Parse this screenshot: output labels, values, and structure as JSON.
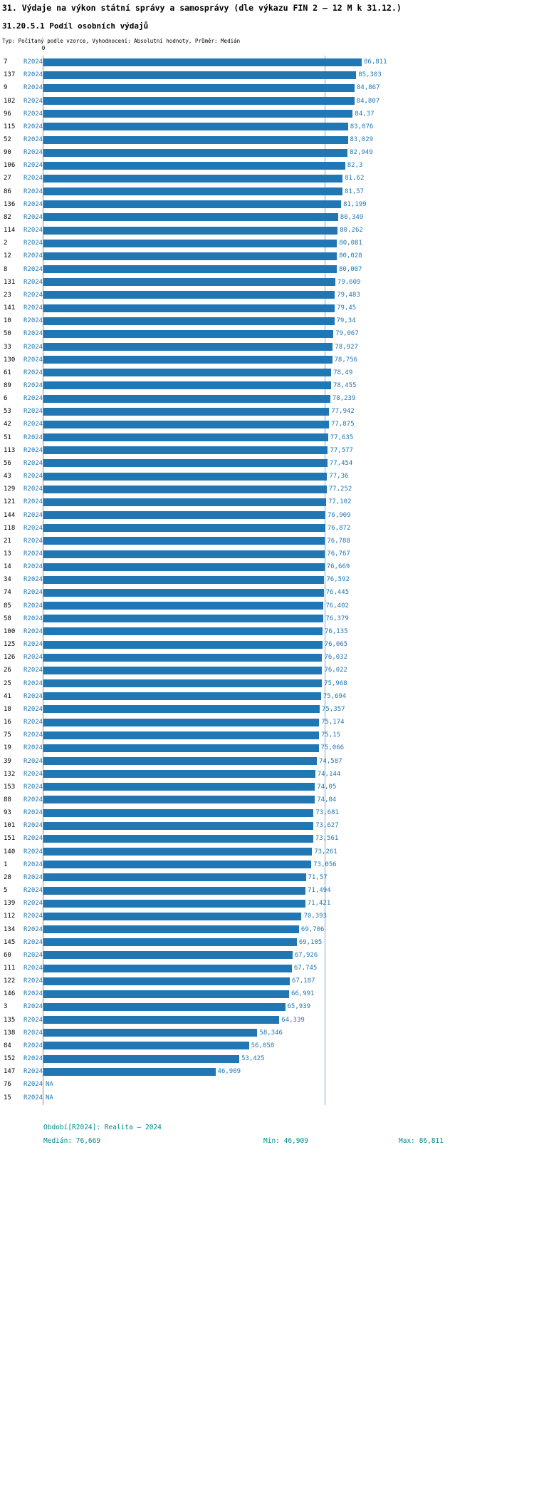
{
  "title": "31. Výdaje na výkon státní správy a samosprávy (dle výkazu FIN 2 – 12 M k 31.12.)",
  "subtitle": "31.20.5.1 Podíl osobních výdajů",
  "meta": "Typ: Počítaný podle vzorce, Vyhodnocení: Absolutní hodnoty, Průměr: Medián",
  "axis": {
    "zero_label": "0"
  },
  "series_label": "R2024",
  "colors": {
    "bar": "#2077b4",
    "value_text": "#1f77b4",
    "footer_text": "#008b8b",
    "median_line": "#7fa8cc"
  },
  "footer": {
    "period": "Období[R2024]: Realita – 2024",
    "median": "Medián: 76,669",
    "min": "Min: 46,909",
    "max": "Max: 86,811"
  },
  "chart_data": {
    "type": "bar",
    "orientation": "horizontal",
    "title": "31.20.5.1 Podíl osobních výdajů",
    "xlabel": "",
    "ylabel": "",
    "xlim": [
      0,
      86.811
    ],
    "median": 76.669,
    "min": 46.909,
    "max": 86.811,
    "grid": false,
    "rows": [
      {
        "id": "7",
        "label": "R2024",
        "value": 86.811,
        "display": "86,811"
      },
      {
        "id": "137",
        "label": "R2024",
        "value": 85.303,
        "display": "85,303"
      },
      {
        "id": "9",
        "label": "R2024",
        "value": 84.867,
        "display": "84,867"
      },
      {
        "id": "102",
        "label": "R2024",
        "value": 84.807,
        "display": "84,807"
      },
      {
        "id": "96",
        "label": "R2024",
        "value": 84.37,
        "display": "84,37"
      },
      {
        "id": "115",
        "label": "R2024",
        "value": 83.076,
        "display": "83,076"
      },
      {
        "id": "52",
        "label": "R2024",
        "value": 83.029,
        "display": "83,029"
      },
      {
        "id": "90",
        "label": "R2024",
        "value": 82.949,
        "display": "82,949"
      },
      {
        "id": "106",
        "label": "R2024",
        "value": 82.3,
        "display": "82,3"
      },
      {
        "id": "27",
        "label": "R2024",
        "value": 81.62,
        "display": "81,62"
      },
      {
        "id": "86",
        "label": "R2024",
        "value": 81.57,
        "display": "81,57"
      },
      {
        "id": "136",
        "label": "R2024",
        "value": 81.199,
        "display": "81,199"
      },
      {
        "id": "82",
        "label": "R2024",
        "value": 80.349,
        "display": "80,349"
      },
      {
        "id": "114",
        "label": "R2024",
        "value": 80.262,
        "display": "80,262"
      },
      {
        "id": "2",
        "label": "R2024",
        "value": 80.081,
        "display": "80,081"
      },
      {
        "id": "12",
        "label": "R2024",
        "value": 80.028,
        "display": "80,028"
      },
      {
        "id": "8",
        "label": "R2024",
        "value": 80.007,
        "display": "80,007"
      },
      {
        "id": "131",
        "label": "R2024",
        "value": 79.609,
        "display": "79,609"
      },
      {
        "id": "23",
        "label": "R2024",
        "value": 79.483,
        "display": "79,483"
      },
      {
        "id": "141",
        "label": "R2024",
        "value": 79.45,
        "display": "79,45"
      },
      {
        "id": "10",
        "label": "R2024",
        "value": 79.34,
        "display": "79,34"
      },
      {
        "id": "50",
        "label": "R2024",
        "value": 79.067,
        "display": "79,067"
      },
      {
        "id": "33",
        "label": "R2024",
        "value": 78.927,
        "display": "78,927"
      },
      {
        "id": "130",
        "label": "R2024",
        "value": 78.756,
        "display": "78,756"
      },
      {
        "id": "61",
        "label": "R2024",
        "value": 78.49,
        "display": "78,49"
      },
      {
        "id": "89",
        "label": "R2024",
        "value": 78.455,
        "display": "78,455"
      },
      {
        "id": "6",
        "label": "R2024",
        "value": 78.239,
        "display": "78,239"
      },
      {
        "id": "53",
        "label": "R2024",
        "value": 77.942,
        "display": "77,942"
      },
      {
        "id": "42",
        "label": "R2024",
        "value": 77.875,
        "display": "77,875"
      },
      {
        "id": "51",
        "label": "R2024",
        "value": 77.635,
        "display": "77,635"
      },
      {
        "id": "113",
        "label": "R2024",
        "value": 77.577,
        "display": "77,577"
      },
      {
        "id": "56",
        "label": "R2024",
        "value": 77.454,
        "display": "77,454"
      },
      {
        "id": "43",
        "label": "R2024",
        "value": 77.36,
        "display": "77,36"
      },
      {
        "id": "129",
        "label": "R2024",
        "value": 77.252,
        "display": "77,252"
      },
      {
        "id": "121",
        "label": "R2024",
        "value": 77.102,
        "display": "77,102"
      },
      {
        "id": "144",
        "label": "R2024",
        "value": 76.909,
        "display": "76,909"
      },
      {
        "id": "118",
        "label": "R2024",
        "value": 76.872,
        "display": "76,872"
      },
      {
        "id": "21",
        "label": "R2024",
        "value": 76.788,
        "display": "76,788"
      },
      {
        "id": "13",
        "label": "R2024",
        "value": 76.767,
        "display": "76,767"
      },
      {
        "id": "14",
        "label": "R2024",
        "value": 76.669,
        "display": "76,669"
      },
      {
        "id": "34",
        "label": "R2024",
        "value": 76.592,
        "display": "76,592"
      },
      {
        "id": "74",
        "label": "R2024",
        "value": 76.445,
        "display": "76,445"
      },
      {
        "id": "85",
        "label": "R2024",
        "value": 76.402,
        "display": "76,402"
      },
      {
        "id": "58",
        "label": "R2024",
        "value": 76.379,
        "display": "76,379"
      },
      {
        "id": "100",
        "label": "R2024",
        "value": 76.135,
        "display": "76,135"
      },
      {
        "id": "125",
        "label": "R2024",
        "value": 76.065,
        "display": "76,065"
      },
      {
        "id": "126",
        "label": "R2024",
        "value": 76.032,
        "display": "76,032"
      },
      {
        "id": "26",
        "label": "R2024",
        "value": 76.022,
        "display": "76,022"
      },
      {
        "id": "25",
        "label": "R2024",
        "value": 75.968,
        "display": "75,968"
      },
      {
        "id": "41",
        "label": "R2024",
        "value": 75.694,
        "display": "75,694"
      },
      {
        "id": "18",
        "label": "R2024",
        "value": 75.357,
        "display": "75,357"
      },
      {
        "id": "16",
        "label": "R2024",
        "value": 75.174,
        "display": "75,174"
      },
      {
        "id": "75",
        "label": "R2024",
        "value": 75.15,
        "display": "75,15"
      },
      {
        "id": "19",
        "label": "R2024",
        "value": 75.066,
        "display": "75,066"
      },
      {
        "id": "39",
        "label": "R2024",
        "value": 74.587,
        "display": "74,587"
      },
      {
        "id": "132",
        "label": "R2024",
        "value": 74.144,
        "display": "74,144"
      },
      {
        "id": "153",
        "label": "R2024",
        "value": 74.05,
        "display": "74,05"
      },
      {
        "id": "88",
        "label": "R2024",
        "value": 74.04,
        "display": "74,04"
      },
      {
        "id": "93",
        "label": "R2024",
        "value": 73.681,
        "display": "73,681"
      },
      {
        "id": "101",
        "label": "R2024",
        "value": 73.627,
        "display": "73,627"
      },
      {
        "id": "151",
        "label": "R2024",
        "value": 73.561,
        "display": "73,561"
      },
      {
        "id": "140",
        "label": "R2024",
        "value": 73.261,
        "display": "73,261"
      },
      {
        "id": "1",
        "label": "R2024",
        "value": 73.056,
        "display": "73,056"
      },
      {
        "id": "28",
        "label": "R2024",
        "value": 71.57,
        "display": "71,57"
      },
      {
        "id": "5",
        "label": "R2024",
        "value": 71.494,
        "display": "71,494"
      },
      {
        "id": "139",
        "label": "R2024",
        "value": 71.421,
        "display": "71,421"
      },
      {
        "id": "112",
        "label": "R2024",
        "value": 70.393,
        "display": "70,393"
      },
      {
        "id": "134",
        "label": "R2024",
        "value": 69.706,
        "display": "69,706"
      },
      {
        "id": "145",
        "label": "R2024",
        "value": 69.105,
        "display": "69,105"
      },
      {
        "id": "60",
        "label": "R2024",
        "value": 67.926,
        "display": "67,926"
      },
      {
        "id": "111",
        "label": "R2024",
        "value": 67.745,
        "display": "67,745"
      },
      {
        "id": "122",
        "label": "R2024",
        "value": 67.187,
        "display": "67,187"
      },
      {
        "id": "146",
        "label": "R2024",
        "value": 66.991,
        "display": "66,991"
      },
      {
        "id": "3",
        "label": "R2024",
        "value": 65.939,
        "display": "65,939"
      },
      {
        "id": "135",
        "label": "R2024",
        "value": 64.339,
        "display": "64,339"
      },
      {
        "id": "138",
        "label": "R2024",
        "value": 58.346,
        "display": "58,346"
      },
      {
        "id": "84",
        "label": "R2024",
        "value": 56.058,
        "display": "56,058"
      },
      {
        "id": "152",
        "label": "R2024",
        "value": 53.425,
        "display": "53,425"
      },
      {
        "id": "147",
        "label": "R2024",
        "value": 46.909,
        "display": "46,909"
      },
      {
        "id": "76",
        "label": "R2024",
        "value": null,
        "display": "NA"
      },
      {
        "id": "15",
        "label": "R2024",
        "value": null,
        "display": "NA"
      }
    ]
  }
}
